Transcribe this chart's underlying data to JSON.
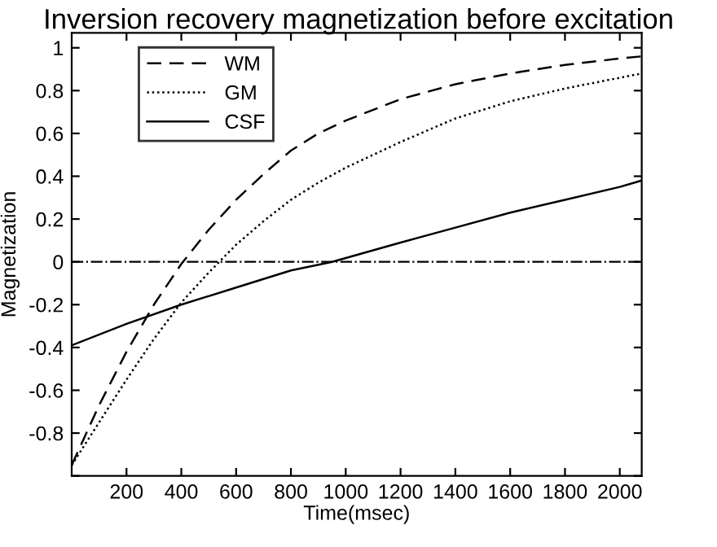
{
  "chart_data": {
    "type": "line",
    "title": "Inversion recovery magnetization before excitation",
    "xlabel": "Time(msec)",
    "ylabel": "Magnetization",
    "xlim": [
      0,
      2080
    ],
    "xticks": [
      200,
      400,
      600,
      800,
      1000,
      1200,
      1400,
      1600,
      1800,
      2000
    ],
    "ylim": [
      -1,
      1.07
    ],
    "yticks": [
      {
        "value": -1,
        "label": null
      },
      -0.8,
      -0.6,
      -0.4,
      -0.2,
      0,
      0.2,
      0.4,
      0.6,
      0.8,
      1
    ],
    "grid": false,
    "legend": "top left",
    "marker": "none",
    "ref_lines": [
      {
        "axis": "y",
        "value": 0,
        "color": "#000000",
        "line_style": "dashdot"
      }
    ],
    "series": [
      {
        "name": "WM",
        "color": "#000000",
        "line_style": "dashed",
        "x": [
          0,
          100,
          200,
          300,
          400,
          500,
          600,
          700,
          800,
          900,
          1000,
          1200,
          1400,
          1600,
          1800,
          2000,
          2080
        ],
        "values": [
          -0.95,
          -0.67,
          -0.42,
          -0.2,
          -0.01,
          0.15,
          0.29,
          0.41,
          0.52,
          0.6,
          0.66,
          0.76,
          0.83,
          0.88,
          0.92,
          0.95,
          0.96
        ]
      },
      {
        "name": "GM",
        "color": "#000000",
        "line_style": "dotted",
        "x": [
          0,
          100,
          200,
          300,
          400,
          500,
          600,
          700,
          800,
          900,
          1000,
          1200,
          1400,
          1600,
          1800,
          2000,
          2080
        ],
        "values": [
          -0.95,
          -0.75,
          -0.55,
          -0.36,
          -0.19,
          -0.05,
          0.08,
          0.19,
          0.29,
          0.37,
          0.44,
          0.56,
          0.67,
          0.75,
          0.81,
          0.86,
          0.88
        ]
      },
      {
        "name": "CSF",
        "color": "#000000",
        "line_style": "solid",
        "x": [
          0,
          200,
          400,
          600,
          800,
          950,
          1200,
          1400,
          1600,
          1800,
          2000,
          2080
        ],
        "values": [
          -0.39,
          -0.29,
          -0.2,
          -0.12,
          -0.04,
          0.0,
          0.09,
          0.16,
          0.23,
          0.29,
          0.35,
          0.38
        ]
      }
    ]
  }
}
